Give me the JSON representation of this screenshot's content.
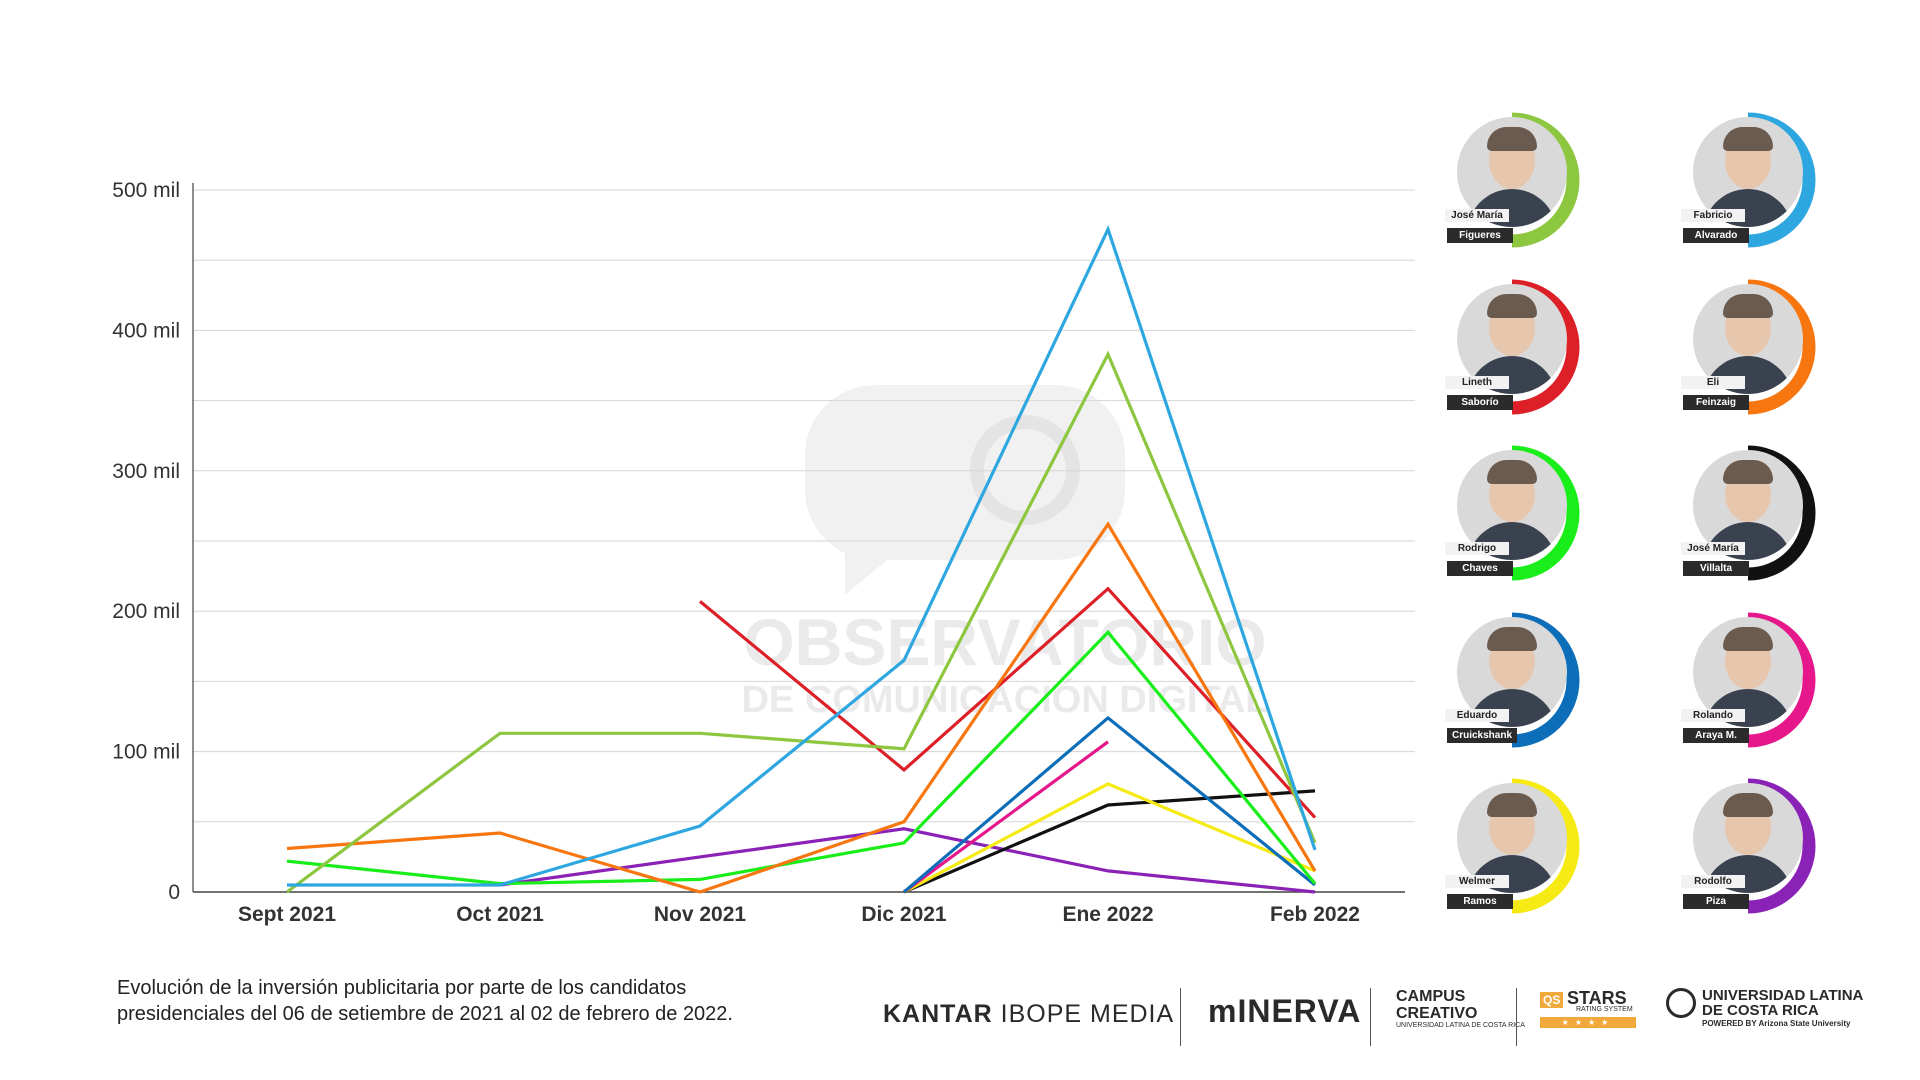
{
  "chart_data": {
    "type": "line",
    "categories": [
      "Sept 2021",
      "Oct 2021",
      "Nov 2021",
      "Dic 2021",
      "Ene 2022",
      "Feb 2022"
    ],
    "y_ticks": [
      {
        "value": 0,
        "label": "0"
      },
      {
        "value": 100000,
        "label": "100 mil"
      },
      {
        "value": 200000,
        "label": "200 mil"
      },
      {
        "value": 300000,
        "label": "300 mil"
      },
      {
        "value": 400000,
        "label": "400 mil"
      },
      {
        "value": 500000,
        "label": "500 mil"
      }
    ],
    "ylim": [
      0,
      500000
    ],
    "grid": true,
    "legend_position": "right",
    "series": [
      {
        "name": "Fabricio Alvarado",
        "color": "#2ea7e0",
        "values": [
          5000,
          5000,
          47000,
          165000,
          472000,
          30000
        ]
      },
      {
        "name": "José María Figueres",
        "color": "#8dc63f",
        "values": [
          0,
          113000,
          113000,
          102000,
          383000,
          35000
        ]
      },
      {
        "name": "Eli Feinzaig",
        "color": "#f7760f",
        "values": [
          31000,
          42000,
          0,
          50000,
          262000,
          15000
        ]
      },
      {
        "name": "Lineth Saborío",
        "color": "#dd2028",
        "values": [
          null,
          null,
          207000,
          87000,
          216000,
          53000
        ]
      },
      {
        "name": "Rodrigo Chaves",
        "color": "#1aee1a",
        "values": [
          22000,
          6000,
          9000,
          35000,
          185000,
          6000
        ]
      },
      {
        "name": "Eduardo Cruickshank",
        "color": "#0c6db8",
        "values": [
          null,
          null,
          null,
          0,
          124000,
          5000
        ]
      },
      {
        "name": "Rolando Araya M.",
        "color": "#e5178b",
        "values": [
          null,
          null,
          null,
          0,
          107000,
          null
        ]
      },
      {
        "name": "Welmer Ramos",
        "color": "#f6ea15",
        "values": [
          null,
          null,
          null,
          0,
          77000,
          15000
        ]
      },
      {
        "name": "José María Villalta",
        "color": "#111111",
        "values": [
          null,
          null,
          null,
          0,
          62000,
          72000
        ]
      },
      {
        "name": "Rodolfo Piza",
        "color": "#8b22b8",
        "values": [
          null,
          5000,
          25000,
          45000,
          15000,
          0
        ]
      }
    ]
  },
  "watermark": {
    "line1": "OBSERVATORIO",
    "line2": "DE COMUNICACIÓN DIGITAL"
  },
  "candidates": [
    {
      "first": "José María",
      "last": "Figueres",
      "color": "#8dc63f"
    },
    {
      "first": "Fabricio",
      "last": "Alvarado",
      "color": "#2ea7e0"
    },
    {
      "first": "Lineth",
      "last": "Saborío",
      "color": "#dd2028"
    },
    {
      "first": "Eli",
      "last": "Feinzaig",
      "color": "#f7760f"
    },
    {
      "first": "Rodrigo",
      "last": "Chaves",
      "color": "#1aee1a"
    },
    {
      "first": "José María",
      "last": "Villalta",
      "color": "#111111"
    },
    {
      "first": "Eduardo",
      "last": "Cruickshank",
      "color": "#0c6db8"
    },
    {
      "first": "Rolando",
      "last": "Araya M.",
      "color": "#e5178b"
    },
    {
      "first": "Welmer",
      "last": "Ramos",
      "color": "#f6ea15"
    },
    {
      "first": "Rodolfo",
      "last": "Piza",
      "color": "#8b22b8"
    }
  ],
  "caption": {
    "line1": "Evolución de la inversión publicitaria por parte de los candidatos",
    "line2": "presidenciales del 06 de setiembre de 2021 al 02 de febrero de 2022."
  },
  "logos": {
    "kantar_bold": "KANTAR",
    "kantar_rest": "IBOPE MEDIA",
    "minerva": "mINERVA",
    "campus_line1": "CAMPUS",
    "campus_line2": "CREATIVO",
    "campus_small": "UNIVERSIDAD LATINA DE COSTA RICA",
    "qs": "QS",
    "qs_stars": "STARS",
    "qs_rating": "RATING SYSTEM",
    "ulatina_line1": "UNIVERSIDAD LATINA",
    "ulatina_line2": "DE COSTA RICA",
    "ulatina_powered": "POWERED BY Arizona State University"
  }
}
